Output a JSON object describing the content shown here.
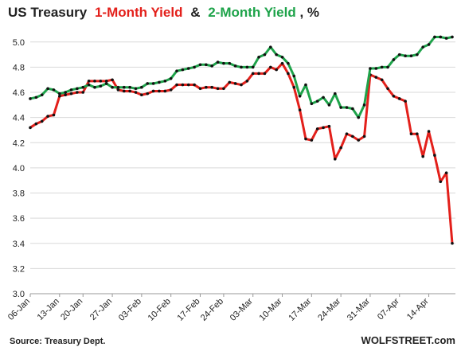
{
  "chart_data": {
    "type": "line",
    "title_parts": [
      "US Treasury",
      "&",
      ", %"
    ],
    "categories": [
      "06-Jan",
      null,
      null,
      null,
      null,
      "13-Jan",
      null,
      null,
      null,
      "20-Jan",
      null,
      null,
      null,
      null,
      "27-Jan",
      null,
      null,
      null,
      null,
      "03-Feb",
      null,
      null,
      null,
      null,
      "10-Feb",
      null,
      null,
      null,
      null,
      "17-Feb",
      null,
      null,
      null,
      "24-Feb",
      null,
      null,
      null,
      null,
      "03-Mar",
      null,
      null,
      null,
      null,
      "10-Mar",
      null,
      null,
      null,
      null,
      "17-Mar",
      null,
      null,
      null,
      null,
      "24-Mar",
      null,
      null,
      null,
      null,
      "31-Mar",
      null,
      null,
      null,
      null,
      "07-Apr",
      null,
      null,
      null,
      null,
      "14-Apr",
      null,
      null,
      null,
      null
    ],
    "series": [
      {
        "name": "1-Month Yield",
        "color": "#e3201b",
        "values": [
          4.32,
          4.35,
          4.37,
          4.41,
          4.42,
          4.57,
          4.58,
          4.59,
          4.6,
          4.6,
          4.69,
          4.69,
          4.69,
          4.69,
          4.7,
          4.62,
          4.61,
          4.61,
          4.6,
          4.58,
          4.59,
          4.61,
          4.61,
          4.61,
          4.62,
          4.66,
          4.66,
          4.66,
          4.66,
          4.63,
          4.64,
          4.64,
          4.63,
          4.63,
          4.68,
          4.67,
          4.66,
          4.69,
          4.75,
          4.75,
          4.75,
          4.8,
          4.78,
          4.83,
          4.75,
          4.64,
          4.46,
          4.23,
          4.22,
          4.31,
          4.32,
          4.33,
          4.07,
          4.16,
          4.27,
          4.25,
          4.22,
          4.25,
          4.74,
          4.72,
          4.7,
          4.63,
          4.57,
          4.55,
          4.53,
          4.27,
          4.27,
          4.09,
          4.29,
          4.1,
          3.89,
          3.96,
          3.4
        ]
      },
      {
        "name": "2-Month Yield",
        "color": "#1ea34a",
        "values": [
          4.55,
          4.56,
          4.58,
          4.63,
          4.62,
          4.59,
          4.6,
          4.62,
          4.63,
          4.64,
          4.66,
          4.64,
          4.65,
          4.67,
          4.64,
          4.64,
          4.64,
          4.64,
          4.63,
          4.64,
          4.67,
          4.67,
          4.68,
          4.69,
          4.71,
          4.77,
          4.78,
          4.79,
          4.8,
          4.82,
          4.82,
          4.81,
          4.84,
          4.83,
          4.83,
          4.81,
          4.8,
          4.8,
          4.8,
          4.88,
          4.9,
          4.96,
          4.9,
          4.88,
          4.83,
          4.73,
          4.57,
          4.66,
          4.51,
          4.53,
          4.56,
          4.5,
          4.59,
          4.48,
          4.48,
          4.47,
          4.4,
          4.5,
          4.79,
          4.79,
          4.8,
          4.8,
          4.86,
          4.9,
          4.89,
          4.89,
          4.9,
          4.96,
          4.98,
          5.04,
          5.04,
          5.03,
          5.04
        ]
      }
    ],
    "ylim": [
      3.0,
      5.1
    ],
    "yticks": [
      {
        "value": 3.0,
        "label": "3.0"
      },
      {
        "value": 3.2,
        "label": "3.2"
      },
      {
        "value": 3.4,
        "label": "3.4"
      },
      {
        "value": 3.6,
        "label": "3.6"
      },
      {
        "value": 3.8,
        "label": "3.8"
      },
      {
        "value": 4.0,
        "label": "4.0"
      },
      {
        "value": 4.2,
        "label": "4.2"
      },
      {
        "value": 4.4,
        "label": "4.4"
      },
      {
        "value": 4.6,
        "label": "4.6"
      },
      {
        "value": 4.8,
        "label": "4.8"
      },
      {
        "value": 5.0,
        "label": "5.0"
      }
    ],
    "grid": true,
    "source": "Source: Treasury Dept.",
    "credit": "WOLFSTREET.com"
  }
}
